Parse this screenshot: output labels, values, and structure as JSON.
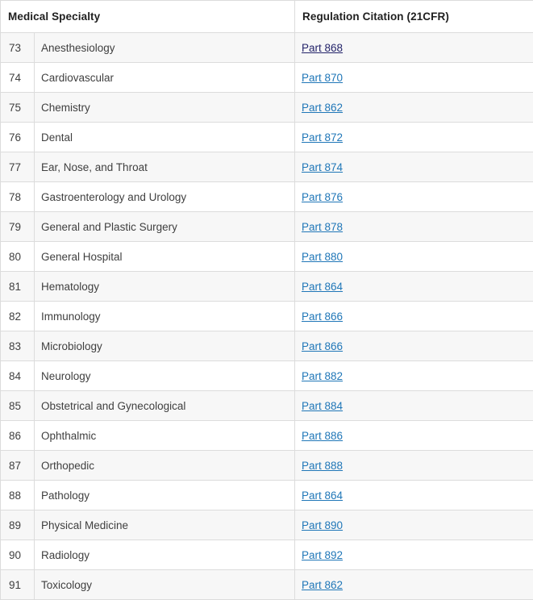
{
  "table": {
    "columns": [
      {
        "label": "Medical Specialty"
      },
      {
        "label": "Regulation Citation (21CFR)"
      }
    ],
    "rows": [
      {
        "num": "73",
        "specialty": "Anesthesiology",
        "citation": "Part 868",
        "visited": true
      },
      {
        "num": "74",
        "specialty": "Cardiovascular",
        "citation": "Part 870",
        "visited": false
      },
      {
        "num": "75",
        "specialty": "Chemistry",
        "citation": "Part 862",
        "visited": false
      },
      {
        "num": "76",
        "specialty": "Dental",
        "citation": "Part 872",
        "visited": false
      },
      {
        "num": "77",
        "specialty": "Ear, Nose, and Throat",
        "citation": "Part 874",
        "visited": false
      },
      {
        "num": "78",
        "specialty": "Gastroenterology and Urology",
        "citation": "Part 876",
        "visited": false
      },
      {
        "num": "79",
        "specialty": "General and Plastic Surgery",
        "citation": "Part 878",
        "visited": false
      },
      {
        "num": "80",
        "specialty": "General Hospital",
        "citation": "Part 880",
        "visited": false
      },
      {
        "num": "81",
        "specialty": "Hematology",
        "citation": "Part 864",
        "visited": false
      },
      {
        "num": "82",
        "specialty": "Immunology",
        "citation": "Part 866",
        "visited": false
      },
      {
        "num": "83",
        "specialty": "Microbiology",
        "citation": "Part 866",
        "visited": false
      },
      {
        "num": "84",
        "specialty": "Neurology",
        "citation": "Part 882",
        "visited": false
      },
      {
        "num": "85",
        "specialty": "Obstetrical and Gynecological",
        "citation": "Part 884",
        "visited": false
      },
      {
        "num": "86",
        "specialty": "Ophthalmic",
        "citation": "Part 886",
        "visited": false
      },
      {
        "num": "87",
        "specialty": "Orthopedic",
        "citation": "Part 888",
        "visited": false
      },
      {
        "num": "88",
        "specialty": "Pathology",
        "citation": "Part 864",
        "visited": false
      },
      {
        "num": "89",
        "specialty": "Physical Medicine",
        "citation": "Part 890",
        "visited": false
      },
      {
        "num": "90",
        "specialty": "Radiology",
        "citation": "Part 892",
        "visited": false
      },
      {
        "num": "91",
        "specialty": "Toxicology",
        "citation": "Part 862",
        "visited": false
      }
    ]
  },
  "colors": {
    "link": "#2077b8",
    "visited_link": "#24246a",
    "border": "#dcdcdc",
    "stripe_row_background": "#f7f7f7",
    "header_text": "#1f1f1f",
    "body_text": "#3f3f3f"
  }
}
